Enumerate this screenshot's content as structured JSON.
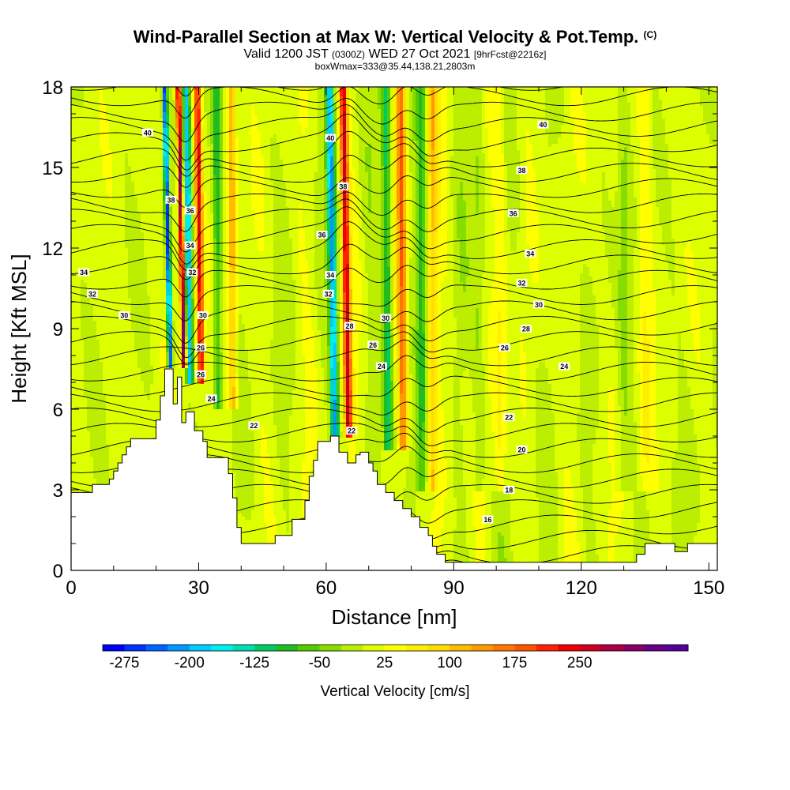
{
  "title": {
    "main": "Wind-Parallel Section at Max W: Vertical Velocity & Pot.Temp.",
    "copyright": "(C)",
    "valid_prefix": "Valid 1200 JST",
    "valid_utc": "(0300Z)",
    "valid_date": "WED 27 Oct 2021",
    "forecast": "[9hrFcst@2216z]",
    "box": "boxWmax=333@35.44,138.21,2803m"
  },
  "chart_data": {
    "type": "heatmap",
    "xlabel": "Distance [nm]",
    "ylabel": "Height [Kft MSL]",
    "xlim": [
      0,
      152
    ],
    "ylim": [
      0,
      18
    ],
    "x_ticks": [
      0,
      30,
      60,
      90,
      120,
      150
    ],
    "y_ticks": [
      0,
      3,
      6,
      9,
      12,
      15,
      18
    ],
    "x_tick_labels": [
      "0",
      "30",
      "60",
      "90",
      "120",
      "150"
    ],
    "y_tick_labels": [
      "0",
      "3",
      "6",
      "9",
      "12",
      "15",
      "18"
    ],
    "colorbar": {
      "title": "Vertical Velocity [cm/s]",
      "min": -300,
      "max": 275,
      "step": 25,
      "labels": [
        "-275",
        "-200",
        "-125",
        "-50",
        "25",
        "100",
        "175",
        "250"
      ],
      "label_values": [
        -275,
        -200,
        -125,
        -50,
        25,
        100,
        175,
        250
      ],
      "colors": [
        "#0000ff",
        "#0033ff",
        "#0066ff",
        "#0099ff",
        "#00ccff",
        "#00eeee",
        "#00ddb0",
        "#00cc66",
        "#22bb22",
        "#55cc00",
        "#88dd00",
        "#bbee00",
        "#ddff00",
        "#ffff00",
        "#ffee00",
        "#ffdd00",
        "#ffbb00",
        "#ff9900",
        "#ff7700",
        "#ff5500",
        "#ff2200",
        "#ee0000",
        "#cc0022",
        "#aa0044",
        "#880066",
        "#660088",
        "#550099"
      ]
    },
    "terrain_kft": [
      [
        0,
        2.9
      ],
      [
        5,
        2.9
      ],
      [
        5,
        3.2
      ],
      [
        9,
        3.2
      ],
      [
        9,
        3.4
      ],
      [
        10,
        3.4
      ],
      [
        10,
        3.7
      ],
      [
        11,
        3.7
      ],
      [
        11,
        4.0
      ],
      [
        12,
        4.0
      ],
      [
        12,
        4.3
      ],
      [
        13,
        4.3
      ],
      [
        13,
        4.6
      ],
      [
        14,
        4.6
      ],
      [
        14,
        4.9
      ],
      [
        20,
        4.9
      ],
      [
        20,
        5.6
      ],
      [
        21,
        5.6
      ],
      [
        21,
        6.5
      ],
      [
        22,
        6.5
      ],
      [
        22,
        7.5
      ],
      [
        24,
        7.5
      ],
      [
        24,
        6.2
      ],
      [
        25,
        6.2
      ],
      [
        25,
        7.2
      ],
      [
        26,
        7.2
      ],
      [
        26,
        5.5
      ],
      [
        27,
        5.5
      ],
      [
        27,
        5.9
      ],
      [
        29,
        5.9
      ],
      [
        29,
        5.2
      ],
      [
        31,
        5.2
      ],
      [
        31,
        4.8
      ],
      [
        32,
        4.8
      ],
      [
        32,
        4.2
      ],
      [
        37,
        4.2
      ],
      [
        37,
        3.6
      ],
      [
        38,
        3.6
      ],
      [
        38,
        2.7
      ],
      [
        39,
        2.7
      ],
      [
        39,
        1.6
      ],
      [
        40,
        1.6
      ],
      [
        40,
        1.0
      ],
      [
        48,
        1.0
      ],
      [
        48,
        1.3
      ],
      [
        52,
        1.3
      ],
      [
        52,
        1.9
      ],
      [
        55,
        1.9
      ],
      [
        55,
        2.6
      ],
      [
        56,
        2.6
      ],
      [
        56,
        3.5
      ],
      [
        57,
        3.5
      ],
      [
        57,
        4.1
      ],
      [
        58,
        4.1
      ],
      [
        58,
        4.8
      ],
      [
        61,
        4.8
      ],
      [
        61,
        5.0
      ],
      [
        63,
        5.0
      ],
      [
        63,
        4.4
      ],
      [
        65,
        4.4
      ],
      [
        65,
        4.0
      ],
      [
        67,
        4.0
      ],
      [
        67,
        4.3
      ],
      [
        68,
        4.3
      ],
      [
        68,
        4.4
      ],
      [
        70,
        4.4
      ],
      [
        70,
        4.0
      ],
      [
        71,
        4.0
      ],
      [
        71,
        3.7
      ],
      [
        72,
        3.7
      ],
      [
        72,
        3.2
      ],
      [
        74,
        3.2
      ],
      [
        74,
        2.9
      ],
      [
        76,
        2.9
      ],
      [
        76,
        2.6
      ],
      [
        78,
        2.6
      ],
      [
        78,
        2.3
      ],
      [
        80,
        2.3
      ],
      [
        80,
        2.0
      ],
      [
        82,
        2.0
      ],
      [
        82,
        1.6
      ],
      [
        84,
        1.6
      ],
      [
        84,
        1.3
      ],
      [
        85,
        1.3
      ],
      [
        85,
        0.9
      ],
      [
        86,
        0.9
      ],
      [
        86,
        0.6
      ],
      [
        88,
        0.6
      ],
      [
        88,
        0.3
      ],
      [
        133,
        0.3
      ],
      [
        133,
        0.6
      ],
      [
        135,
        0.6
      ],
      [
        135,
        1.0
      ],
      [
        142,
        1.0
      ],
      [
        142,
        0.7
      ],
      [
        145,
        0.7
      ],
      [
        145,
        1.0
      ],
      [
        152,
        1.0
      ]
    ],
    "theta_contour_labels": [
      {
        "value": "40",
        "x": 18,
        "y": 16.3
      },
      {
        "value": "40",
        "x": 61,
        "y": 16.1
      },
      {
        "value": "40",
        "x": 111,
        "y": 16.6
      },
      {
        "value": "38",
        "x": 23.5,
        "y": 13.8
      },
      {
        "value": "38",
        "x": 64,
        "y": 14.3
      },
      {
        "value": "38",
        "x": 106,
        "y": 14.9
      },
      {
        "value": "36",
        "x": 28,
        "y": 13.4
      },
      {
        "value": "36",
        "x": 59,
        "y": 12.5
      },
      {
        "value": "36",
        "x": 104,
        "y": 13.3
      },
      {
        "value": "34",
        "x": 28,
        "y": 12.1
      },
      {
        "value": "34",
        "x": 3,
        "y": 11.1
      },
      {
        "value": "34",
        "x": 61,
        "y": 11.0
      },
      {
        "value": "34",
        "x": 108,
        "y": 11.8
      },
      {
        "value": "32",
        "x": 28.5,
        "y": 11.1
      },
      {
        "value": "32",
        "x": 5,
        "y": 10.3
      },
      {
        "value": "32",
        "x": 60.5,
        "y": 10.3
      },
      {
        "value": "32",
        "x": 106,
        "y": 10.7
      },
      {
        "value": "30",
        "x": 31,
        "y": 9.5
      },
      {
        "value": "30",
        "x": 12.5,
        "y": 9.5
      },
      {
        "value": "30",
        "x": 74,
        "y": 9.4
      },
      {
        "value": "30",
        "x": 110,
        "y": 9.9
      },
      {
        "value": "28",
        "x": 65.5,
        "y": 9.1
      },
      {
        "value": "28",
        "x": 107,
        "y": 9.0
      },
      {
        "value": "26",
        "x": 30.5,
        "y": 8.3
      },
      {
        "value": "26",
        "x": 71,
        "y": 8.4
      },
      {
        "value": "26",
        "x": 102,
        "y": 8.3
      },
      {
        "value": "26",
        "x": 30.5,
        "y": 7.3
      },
      {
        "value": "24",
        "x": 33,
        "y": 6.4
      },
      {
        "value": "24",
        "x": 73,
        "y": 7.6
      },
      {
        "value": "24",
        "x": 116,
        "y": 7.6
      },
      {
        "value": "22",
        "x": 43,
        "y": 5.4
      },
      {
        "value": "22",
        "x": 66,
        "y": 5.2
      },
      {
        "value": "22",
        "x": 103,
        "y": 5.7
      },
      {
        "value": "20",
        "x": 106,
        "y": 4.5
      },
      {
        "value": "18",
        "x": 103,
        "y": 3.0
      },
      {
        "value": "16",
        "x": 98,
        "y": 1.9
      }
    ]
  }
}
